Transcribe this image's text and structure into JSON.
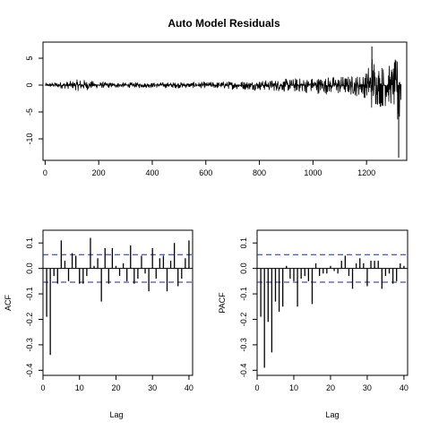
{
  "chart_data": [
    {
      "type": "line",
      "title": "Auto Model Residuals",
      "xlabel": "",
      "ylabel": "",
      "xlim": [
        -8,
        1350
      ],
      "ylim": [
        -14,
        8
      ],
      "xticks": [
        0,
        200,
        400,
        600,
        800,
        1000,
        1200
      ],
      "yticks": [
        5,
        0,
        -5,
        -10
      ],
      "n": 1330,
      "description_points": {
        "x": [
          0,
          100,
          130,
          200,
          300,
          400,
          500,
          600,
          700,
          800,
          900,
          1000,
          1100,
          1150,
          1200,
          1220,
          1240,
          1260,
          1280,
          1300,
          1320,
          1330
        ],
        "envelope_upper": [
          0.4,
          0.8,
          1.2,
          0.6,
          0.5,
          0.5,
          0.6,
          0.6,
          0.8,
          0.9,
          1.2,
          1.5,
          1.8,
          1.8,
          2.5,
          7.2,
          4.5,
          4,
          3.8,
          4.2,
          6,
          3
        ],
        "envelope_lower": [
          -0.4,
          -0.8,
          -1.2,
          -0.6,
          -0.5,
          -0.5,
          -0.6,
          -0.6,
          -0.8,
          -1.0,
          -1.3,
          -1.6,
          -1.9,
          -2.0,
          -2.5,
          -5,
          -4,
          -4.5,
          -3.8,
          -4,
          -13.5,
          -2
        ]
      },
      "grid": false
    },
    {
      "type": "bar",
      "xlabel": "Lag",
      "ylabel": "ACF",
      "xlim": [
        0,
        41
      ],
      "ylim": [
        -0.42,
        0.15
      ],
      "xticks": [
        0,
        10,
        20,
        30,
        40
      ],
      "yticks": [
        0.1,
        0.0,
        -0.1,
        -0.2,
        -0.3,
        -0.4
      ],
      "ci": 0.054,
      "lags": [
        1,
        2,
        3,
        4,
        5,
        6,
        7,
        8,
        9,
        10,
        11,
        12,
        13,
        14,
        15,
        16,
        17,
        18,
        19,
        20,
        21,
        22,
        23,
        24,
        25,
        26,
        27,
        28,
        29,
        30,
        31,
        32,
        33,
        34,
        35,
        36,
        37,
        38,
        39,
        40
      ],
      "values": [
        -0.19,
        -0.34,
        -0.03,
        -0.06,
        0.11,
        0.03,
        -0.05,
        0.06,
        0.05,
        -0.06,
        -0.06,
        -0.03,
        0.12,
        0.01,
        0.04,
        -0.13,
        0.08,
        -0.06,
        0.08,
        0.01,
        -0.03,
        0.02,
        -0.05,
        0.09,
        -0.06,
        -0.04,
        0.05,
        -0.02,
        -0.09,
        0.08,
        -0.04,
        0.04,
        0.05,
        -0.09,
        0.03,
        0.1,
        -0.07,
        -0.04,
        0.04,
        0.11
      ],
      "grid": false
    },
    {
      "type": "bar",
      "xlabel": "Lag",
      "ylabel": "PACF",
      "xlim": [
        0,
        41
      ],
      "ylim": [
        -0.42,
        0.15
      ],
      "xticks": [
        0,
        10,
        20,
        30,
        40
      ],
      "yticks": [
        0.1,
        0.0,
        -0.1,
        -0.2,
        -0.3,
        -0.4
      ],
      "ci": 0.054,
      "lags": [
        1,
        2,
        3,
        4,
        5,
        6,
        7,
        8,
        9,
        10,
        11,
        12,
        13,
        14,
        15,
        16,
        17,
        18,
        19,
        20,
        21,
        22,
        23,
        24,
        25,
        26,
        27,
        28,
        29,
        30,
        31,
        32,
        33,
        34,
        35,
        36,
        37,
        38,
        39,
        40
      ],
      "values": [
        -0.19,
        -0.39,
        -0.21,
        -0.33,
        -0.13,
        -0.17,
        -0.15,
        0.01,
        -0.04,
        -0.05,
        -0.15,
        -0.04,
        -0.03,
        -0.05,
        -0.14,
        0.02,
        -0.03,
        -0.02,
        -0.02,
        0.01,
        -0.01,
        -0.02,
        0.03,
        0.05,
        -0.03,
        -0.08,
        0.02,
        0.04,
        0.02,
        -0.07,
        0.03,
        0.03,
        0.03,
        -0.08,
        -0.03,
        -0.02,
        -0.06,
        -0.05,
        0.02,
        0.01
      ],
      "grid": false
    }
  ]
}
